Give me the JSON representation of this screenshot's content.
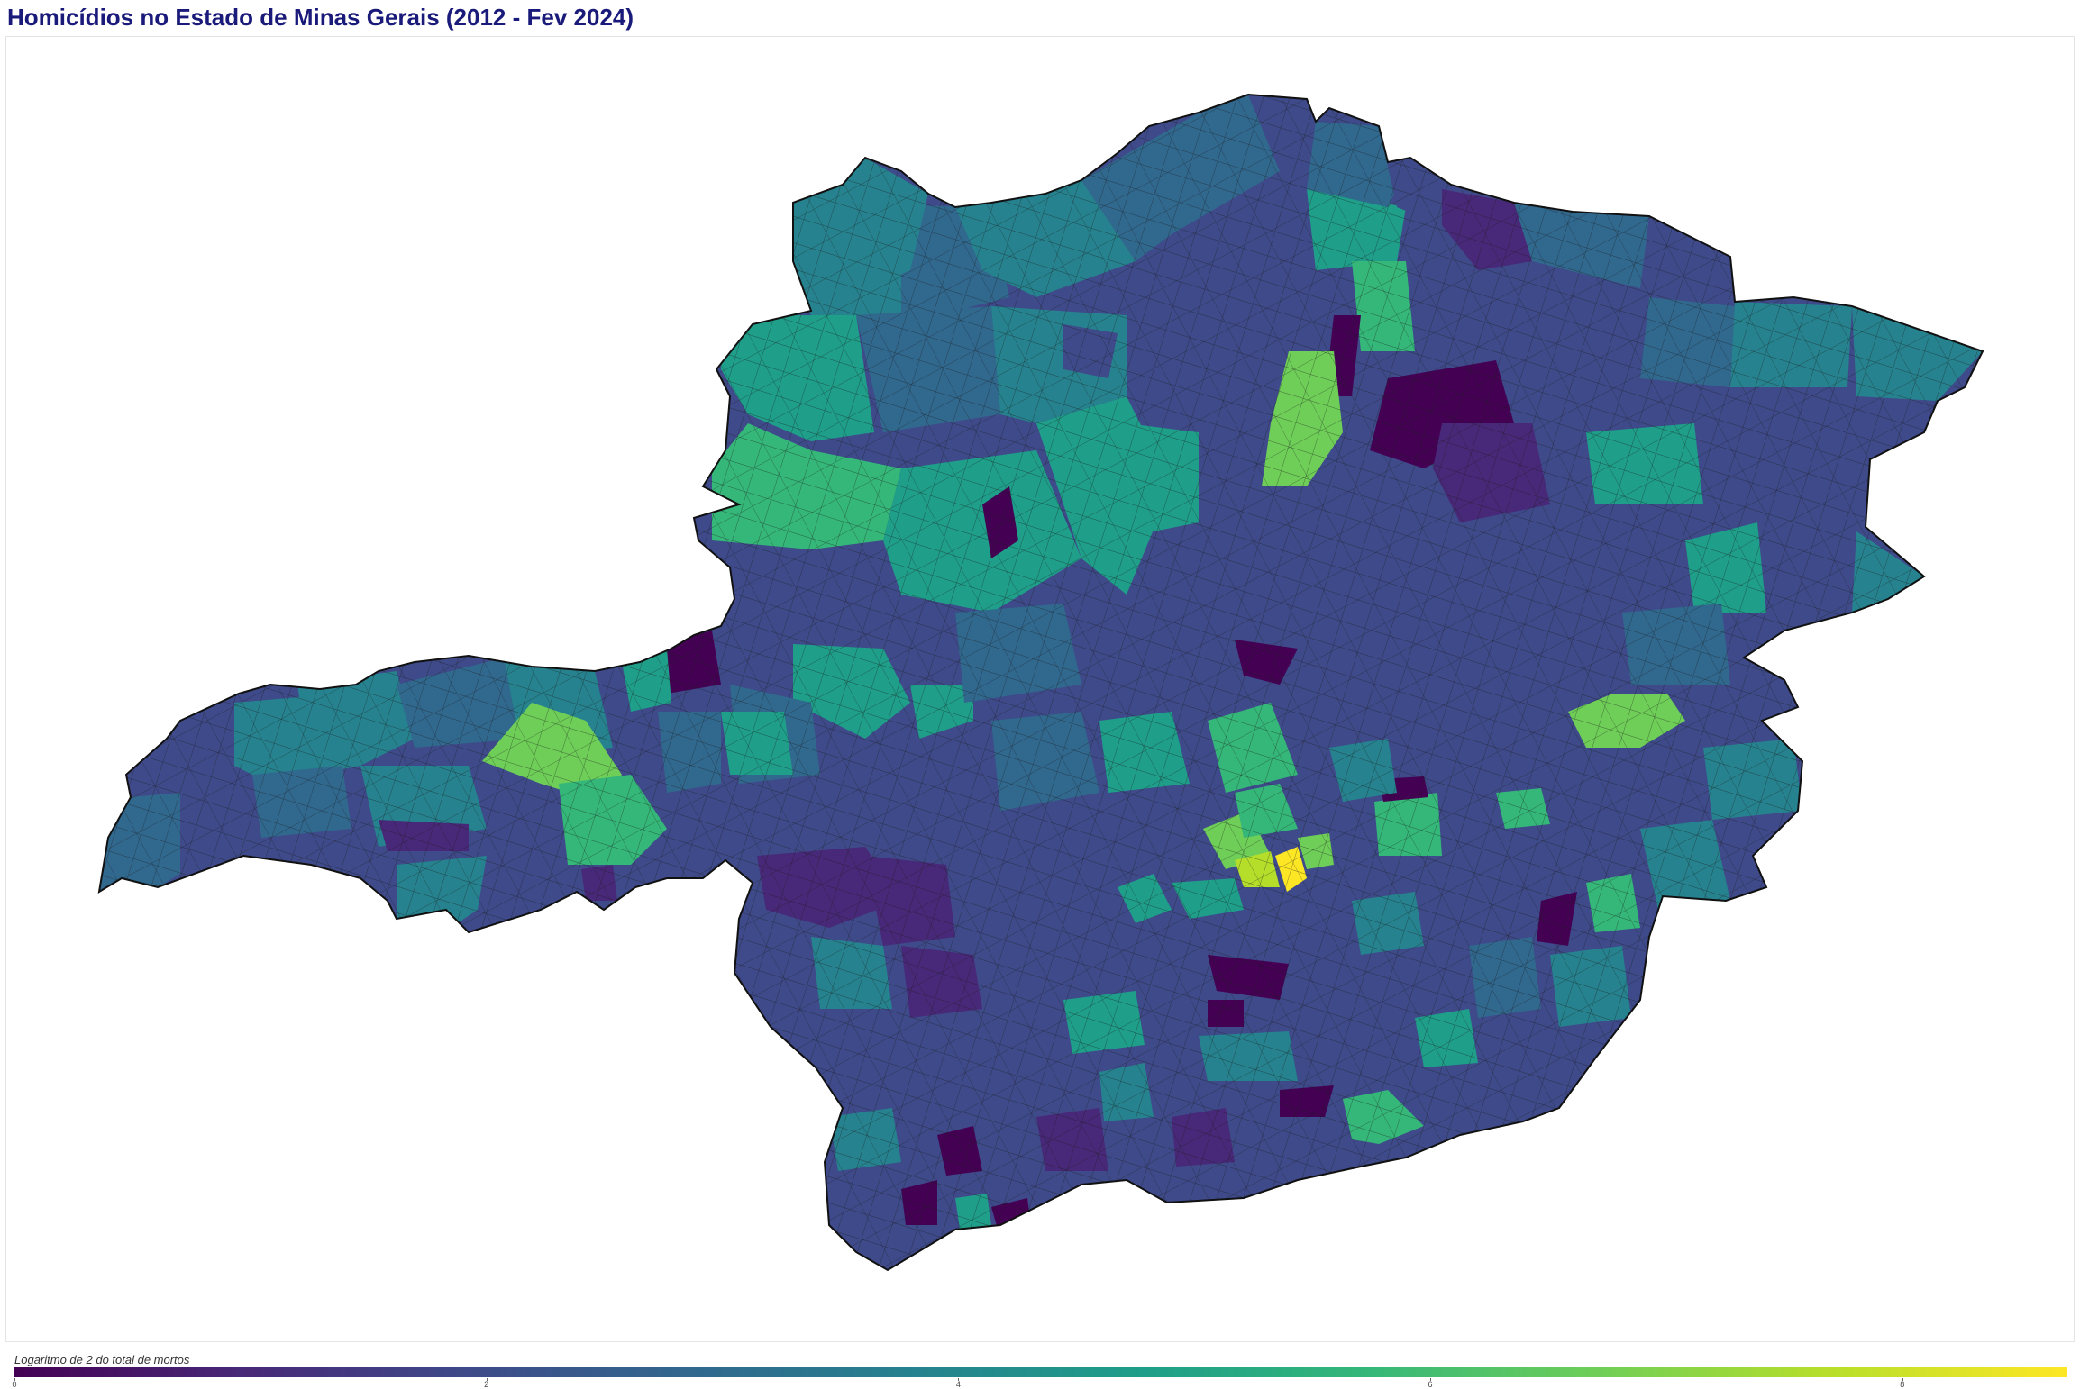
{
  "title": "Homicídios no Estado de Minas Gerais (2012 - Fev 2024)",
  "legend": {
    "label": "Logaritmo de 2 do total de mortos",
    "min": 0,
    "max": 8.7,
    "ticks": [
      "0",
      "2",
      "4",
      "6",
      "8"
    ]
  },
  "colors": {
    "title": "#1a1a7a",
    "scale": [
      "#440154",
      "#482878",
      "#3e4a89",
      "#31688e",
      "#26828e",
      "#1f9e89",
      "#35b779",
      "#6ece58",
      "#b5de2b",
      "#fde725"
    ],
    "border": "#1a1a1a"
  }
}
